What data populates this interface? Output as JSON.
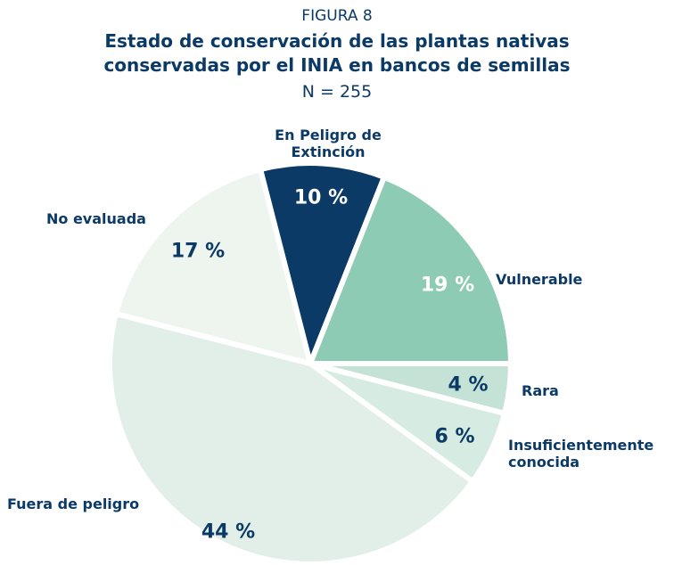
{
  "chart_data": {
    "type": "pie",
    "figure_label": "FIGURA 8",
    "title": "Estado de conservación de las plantas nativas conservadas por el INIA en bancos de semillas",
    "subtitle": "N = 255",
    "categories": [
      "En Peligro de Extinción",
      "Vulnerable",
      "Rara",
      "Insuficientemente conocida",
      "Fuera de peligro",
      "No evaluada"
    ],
    "values": [
      10,
      19,
      4,
      6,
      44,
      17
    ],
    "value_labels": [
      "10 %",
      "19 %",
      "4 %",
      "6 %",
      "44 %",
      "17 %"
    ],
    "colors": [
      "#0b3a67",
      "#8ecbb4",
      "#c5e2d6",
      "#d6ebe2",
      "#e2efe9",
      "#eef5ef"
    ]
  }
}
